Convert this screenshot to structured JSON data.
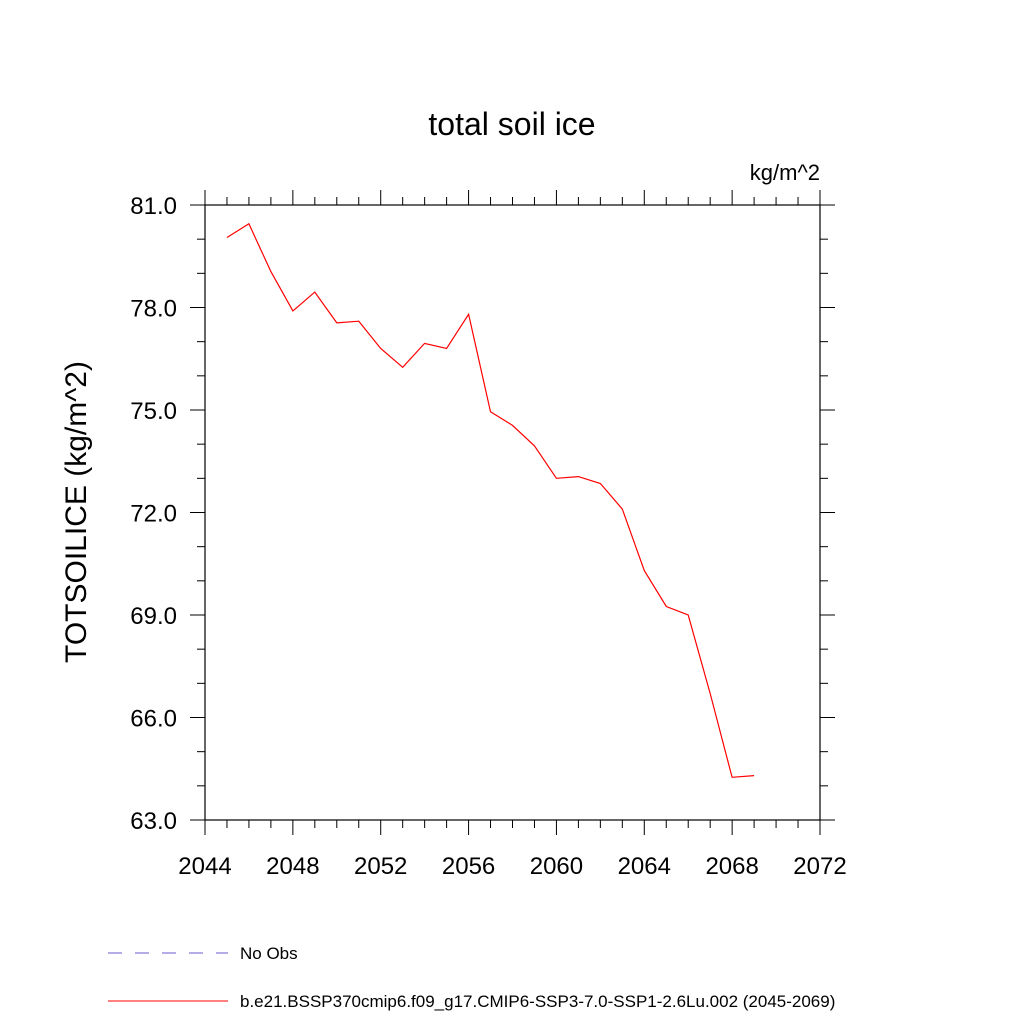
{
  "chart_data": {
    "type": "line",
    "title": "total soil ice",
    "units_label": "kg/m^2",
    "xlabel": "",
    "ylabel": "TOTSOILICE  (kg/m^2)",
    "xlim": [
      2044,
      2072
    ],
    "ylim": [
      63.0,
      81.0
    ],
    "x_ticks": [
      2044,
      2048,
      2052,
      2056,
      2060,
      2064,
      2068,
      2072
    ],
    "x_tick_labels": [
      "2044",
      "2048",
      "2052",
      "2056",
      "2060",
      "2064",
      "2068",
      "2072"
    ],
    "y_ticks": [
      63,
      66,
      69,
      72,
      75,
      78,
      81
    ],
    "y_tick_labels": [
      "63.0",
      "66.0",
      "69.0",
      "72.0",
      "75.0",
      "78.0",
      "81.0"
    ],
    "grid": false,
    "legend_position": "bottom-left",
    "series": [
      {
        "name": "No Obs",
        "color": "#6a5acd",
        "dash": "dashed",
        "x": [],
        "y": []
      },
      {
        "name": "b.e21.BSSP370cmip6.f09_g17.CMIP6-SSP3-7.0-SSP1-2.6Lu.002 (2045-2069)",
        "color": "#ff0000",
        "dash": "solid",
        "x": [
          2045,
          2046,
          2047,
          2048,
          2049,
          2050,
          2051,
          2052,
          2053,
          2054,
          2055,
          2056,
          2057,
          2058,
          2059,
          2060,
          2061,
          2062,
          2063,
          2064,
          2065,
          2066,
          2067,
          2068,
          2069
        ],
        "y": [
          80.05,
          80.45,
          79.05,
          77.9,
          78.45,
          77.55,
          77.6,
          76.8,
          76.25,
          76.95,
          76.8,
          77.8,
          74.95,
          74.55,
          73.95,
          73.0,
          73.05,
          72.85,
          72.1,
          70.3,
          69.25,
          69.0,
          66.7,
          64.25,
          64.3
        ]
      }
    ]
  }
}
